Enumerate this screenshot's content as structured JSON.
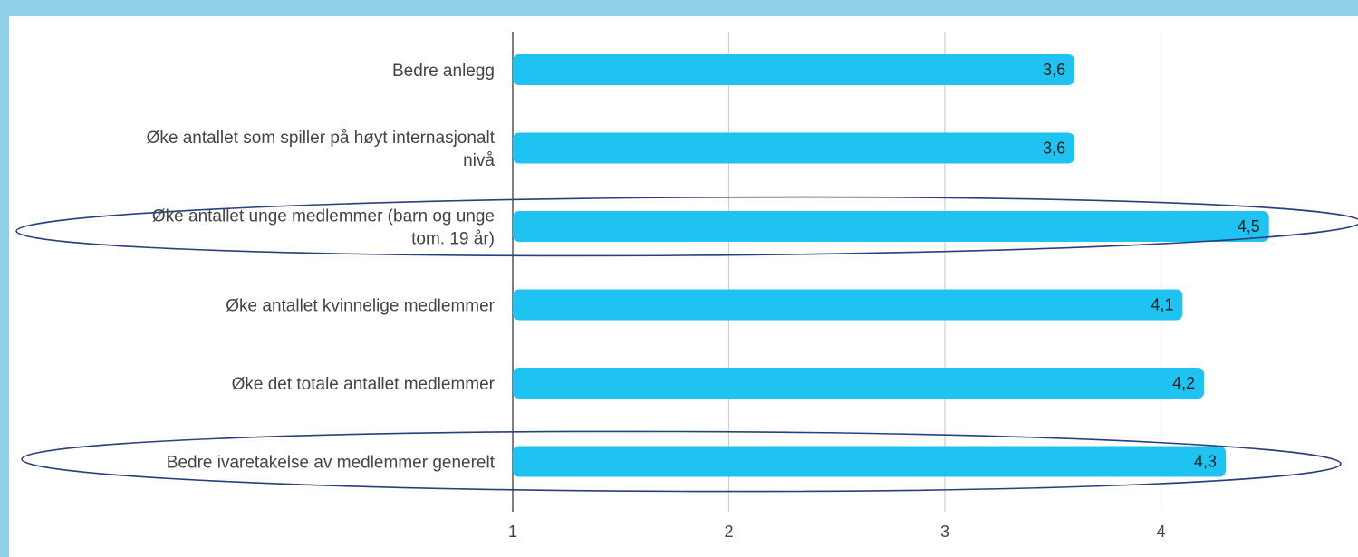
{
  "chart_data": {
    "type": "bar",
    "orientation": "horizontal",
    "categories": [
      [
        "Bedre anlegg"
      ],
      [
        "Øke antallet som spiller på høyt internasjonalt",
        "nivå"
      ],
      [
        "Øke antallet unge medlemmer (barn og unge",
        "tom. 19 år)"
      ],
      [
        "Øke antallet kvinnelige medlemmer"
      ],
      [
        "Øke det totale antallet medlemmer"
      ],
      [
        "Bedre ivaretakelse av medlemmer generelt"
      ]
    ],
    "values": [
      3.6,
      3.6,
      4.5,
      4.1,
      4.2,
      4.3
    ],
    "value_labels": [
      "3,6",
      "3,6",
      "4,5",
      "4,1",
      "4,2",
      "4,3"
    ],
    "xticks": [
      "1",
      "2",
      "3",
      "4"
    ],
    "xlim": [
      1,
      4.6
    ],
    "highlighted_categories": [
      2,
      5
    ],
    "grid": true,
    "bar_color": "#1fc3f2",
    "highlight_outline_color": "#2b3f7a"
  }
}
